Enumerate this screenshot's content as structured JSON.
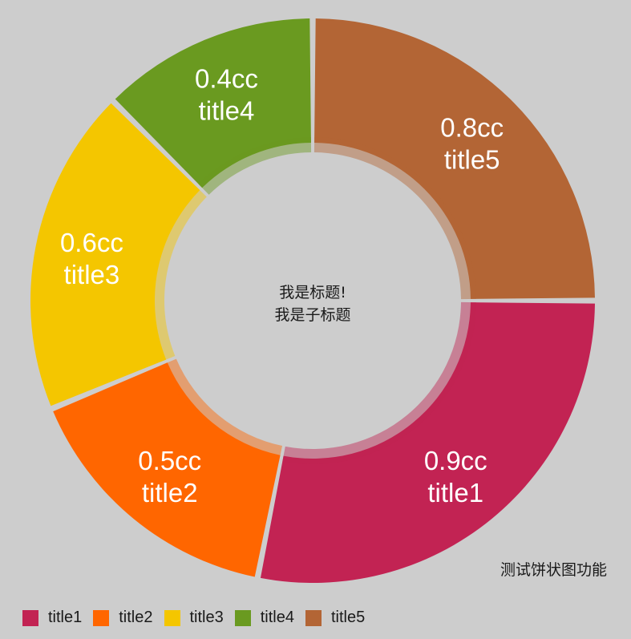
{
  "chart_data": {
    "type": "pie",
    "center_title": "我是标题!",
    "center_subtitle": "我是子标题",
    "description": "测试饼状图功能",
    "unit": "cc",
    "slices": [
      {
        "label": "title1",
        "value": 0.9,
        "value_text": "0.9cc",
        "color": "#c22353"
      },
      {
        "label": "title2",
        "value": 0.5,
        "value_text": "0.5cc",
        "color": "#ff6600"
      },
      {
        "label": "title3",
        "value": 0.6,
        "value_text": "0.6cc",
        "color": "#f4c600"
      },
      {
        "label": "title4",
        "value": 0.4,
        "value_text": "0.4cc",
        "color": "#6a9a20"
      },
      {
        "label": "title5",
        "value": 0.8,
        "value_text": "0.8cc",
        "color": "#b36535"
      }
    ],
    "legend_placement": "bottom-left",
    "start_angle_deg": 0,
    "direction": "clockwise",
    "hole": true
  }
}
